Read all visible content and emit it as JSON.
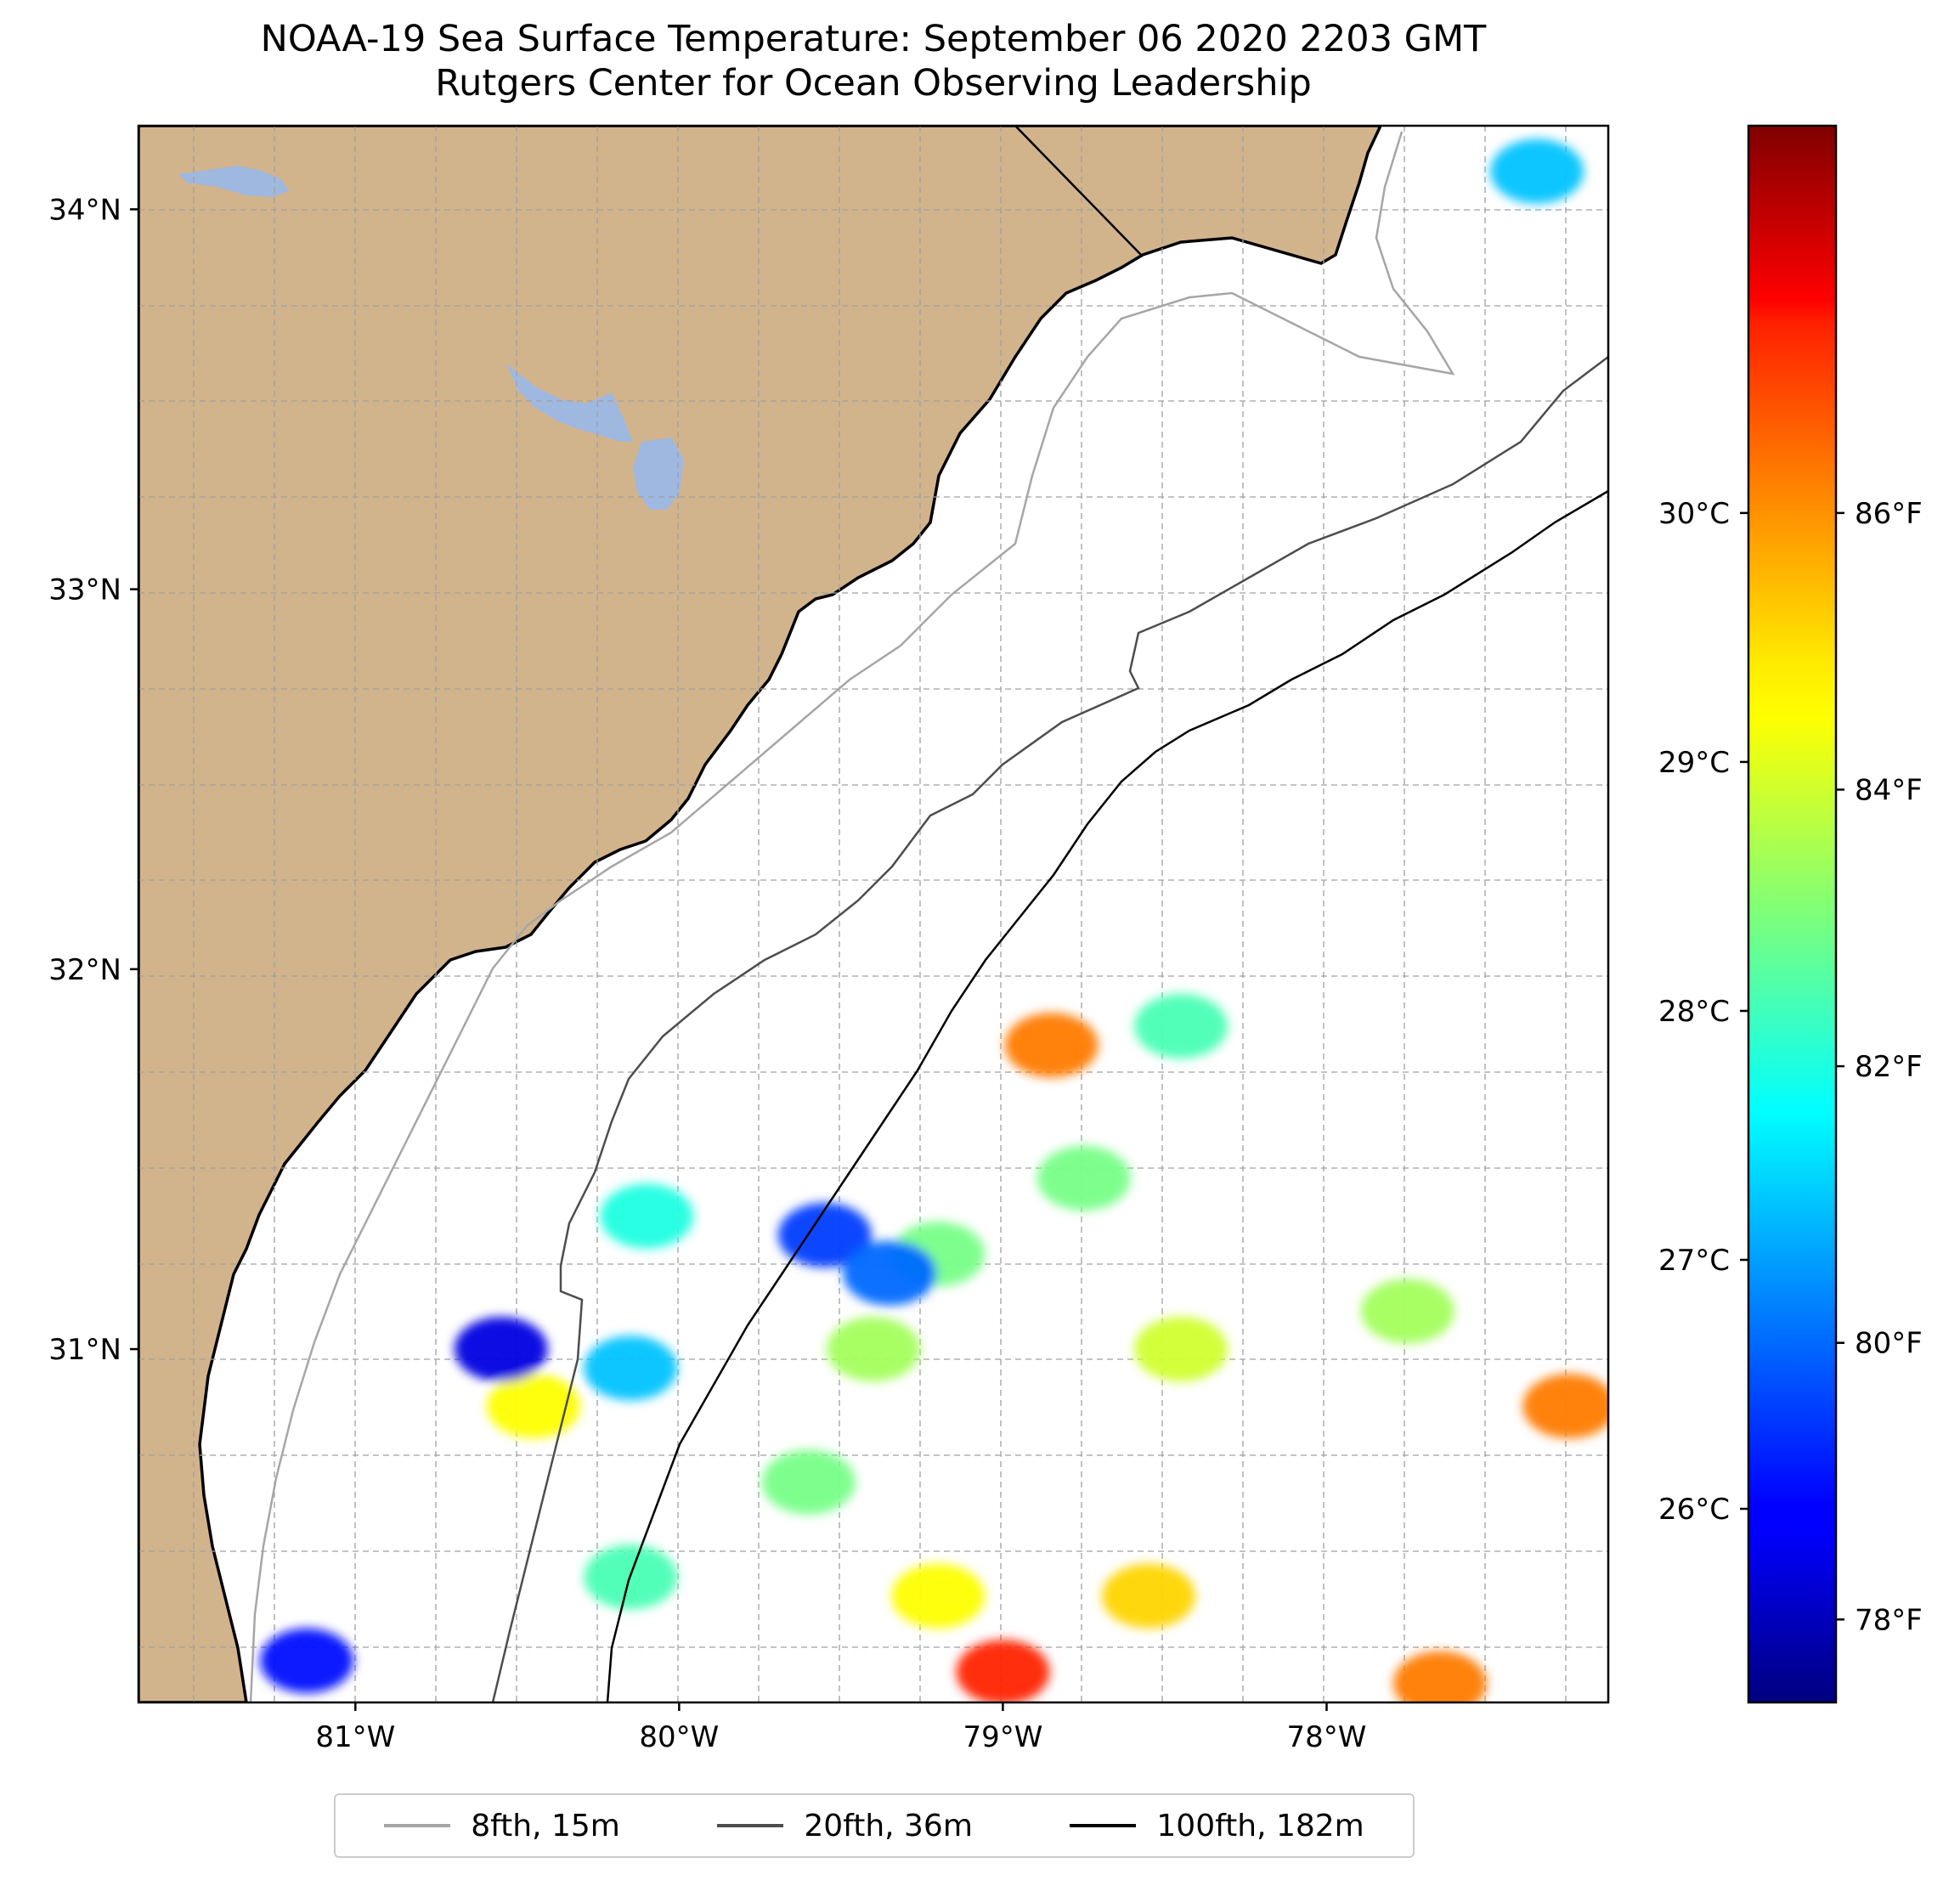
{
  "title": {
    "line1": "NOAA-19 Sea Surface Temperature: September 06 2020 2203 GMT",
    "line2": "Rutgers Center for Ocean Observing Leadership"
  },
  "map": {
    "lon_range": [
      -81.67,
      -77.13
    ],
    "lat_range": [
      30.07,
      34.22
    ],
    "lat_ticks": [
      "34°N",
      "33°N",
      "32°N",
      "31°N"
    ],
    "lat_tick_values": [
      34,
      33,
      32,
      31
    ],
    "lon_ticks": [
      "81°W",
      "80°W",
      "79°W",
      "78°W"
    ],
    "lon_tick_values": [
      -81,
      -80,
      -79,
      -78
    ],
    "land_color": "#d2b48c",
    "lake_color": "#9fb8e0",
    "gridlines": "dashed"
  },
  "colorbar": {
    "colormap": "jet",
    "celsius_ticks": [
      "30°C",
      "29°C",
      "28°C",
      "27°C",
      "26°C"
    ],
    "celsius_values": [
      30,
      29,
      28,
      27,
      26
    ],
    "fahrenheit_ticks": [
      "86°F",
      "84°F",
      "82°F",
      "80°F",
      "78°F"
    ],
    "fahrenheit_values": [
      86,
      84,
      82,
      80,
      78
    ],
    "range_f": [
      77.4,
      88.8
    ]
  },
  "legend": {
    "items": [
      {
        "label": "8fth, 15m",
        "color": "#a6a6a6"
      },
      {
        "label": "20fth, 36m",
        "color": "#4d4d4d"
      },
      {
        "label": "100fth, 182m",
        "color": "#000000"
      }
    ]
  },
  "sst_patches": [
    {
      "lon": -78.85,
      "lat": 31.8,
      "temp_f": 86.0
    },
    {
      "lon": -78.45,
      "lat": 31.85,
      "temp_f": 82.5
    },
    {
      "lon": -78.75,
      "lat": 31.45,
      "temp_f": 83.0
    },
    {
      "lon": -79.2,
      "lat": 31.25,
      "temp_f": 83.0
    },
    {
      "lon": -79.55,
      "lat": 31.3,
      "temp_f": 79.5
    },
    {
      "lon": -79.35,
      "lat": 31.2,
      "temp_f": 80.0
    },
    {
      "lon": -79.4,
      "lat": 31.0,
      "temp_f": 83.5
    },
    {
      "lon": -79.6,
      "lat": 30.65,
      "temp_f": 83.0
    },
    {
      "lon": -79.2,
      "lat": 30.35,
      "temp_f": 84.5
    },
    {
      "lon": -79.0,
      "lat": 30.15,
      "temp_f": 87.0
    },
    {
      "lon": -78.55,
      "lat": 30.35,
      "temp_f": 85.0
    },
    {
      "lon": -80.45,
      "lat": 30.85,
      "temp_f": 84.5
    },
    {
      "lon": -80.55,
      "lat": 31.0,
      "temp_f": 78.5
    },
    {
      "lon": -80.1,
      "lat": 31.35,
      "temp_f": 82.0
    },
    {
      "lon": -80.15,
      "lat": 30.95,
      "temp_f": 81.0
    },
    {
      "lon": -80.15,
      "lat": 30.4,
      "temp_f": 82.5
    },
    {
      "lon": -77.75,
      "lat": 31.1,
      "temp_f": 83.5
    },
    {
      "lon": -77.25,
      "lat": 30.85,
      "temp_f": 86.0
    },
    {
      "lon": -77.65,
      "lat": 30.12,
      "temp_f": 86.0
    },
    {
      "lon": -78.45,
      "lat": 31.0,
      "temp_f": 84.0
    },
    {
      "lon": -81.15,
      "lat": 30.18,
      "temp_f": 79.0
    },
    {
      "lon": -77.35,
      "lat": 34.1,
      "temp_f": 81.0
    }
  ]
}
